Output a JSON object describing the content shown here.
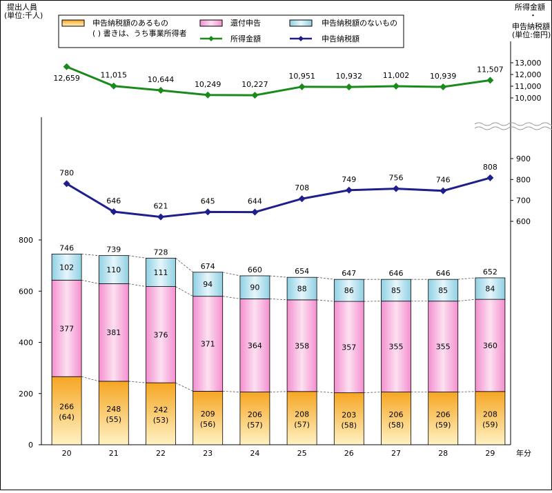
{
  "chart_data": {
    "type": "bar",
    "categories": [
      "20",
      "21",
      "22",
      "23",
      "24",
      "25",
      "26",
      "27",
      "28",
      "29"
    ],
    "x_unit": "年分",
    "left_axis": {
      "label": "提出人員\n(単位:千人)",
      "ticks": [
        0,
        200,
        400,
        600,
        800
      ],
      "ylim": [
        0,
        800
      ]
    },
    "right_axis": {
      "label": "所得金額\n・\n申告納税額\n(単位:億円)",
      "upper_ticks": [
        "13,000",
        "12,000",
        "11,000",
        "10,000"
      ],
      "upper_tick_values": [
        13000,
        12000,
        11000,
        10000
      ],
      "lower_ticks": [
        900,
        800,
        700,
        600
      ]
    },
    "bar_series": [
      {
        "name": "申告納税額のあるもの",
        "color": "#F9B233",
        "values": [
          266,
          248,
          242,
          209,
          206,
          208,
          203,
          206,
          206,
          208
        ]
      },
      {
        "name": "還付申告",
        "color": "#F7B6DD",
        "values": [
          377,
          381,
          376,
          371,
          364,
          358,
          357,
          355,
          355,
          360
        ]
      },
      {
        "name": "申告納税額のないもの",
        "color": "#A8DCEB",
        "values": [
          102,
          110,
          111,
          94,
          90,
          88,
          86,
          85,
          85,
          84
        ]
      }
    ],
    "bar_series_note": "(   ) 書きは、うち事業所得者",
    "business_income_earners": [
      "(64)",
      "(55)",
      "(53)",
      "(56)",
      "(57)",
      "(57)",
      "(58)",
      "(58)",
      "(59)",
      "(59)"
    ],
    "bar_totals": [
      746,
      739,
      728,
      674,
      660,
      654,
      647,
      646,
      646,
      652
    ],
    "line_series": [
      {
        "name": "所得金額",
        "color": "#1A8A1A",
        "marker": "diamond",
        "values": [
          12659,
          11015,
          10644,
          10249,
          10227,
          10951,
          10932,
          11002,
          10939,
          11507
        ],
        "labels": [
          "12,659",
          "11,015",
          "10,644",
          "10,249",
          "10,227",
          "10,951",
          "10,932",
          "11,002",
          "10,939",
          "11,507"
        ]
      },
      {
        "name": "申告納税額",
        "color": "#1F1F8C",
        "marker": "diamond",
        "values": [
          780,
          646,
          621,
          645,
          644,
          708,
          749,
          756,
          746,
          808
        ],
        "labels": [
          "780",
          "646",
          "621",
          "645",
          "644",
          "708",
          "749",
          "756",
          "746",
          "808"
        ]
      }
    ]
  }
}
